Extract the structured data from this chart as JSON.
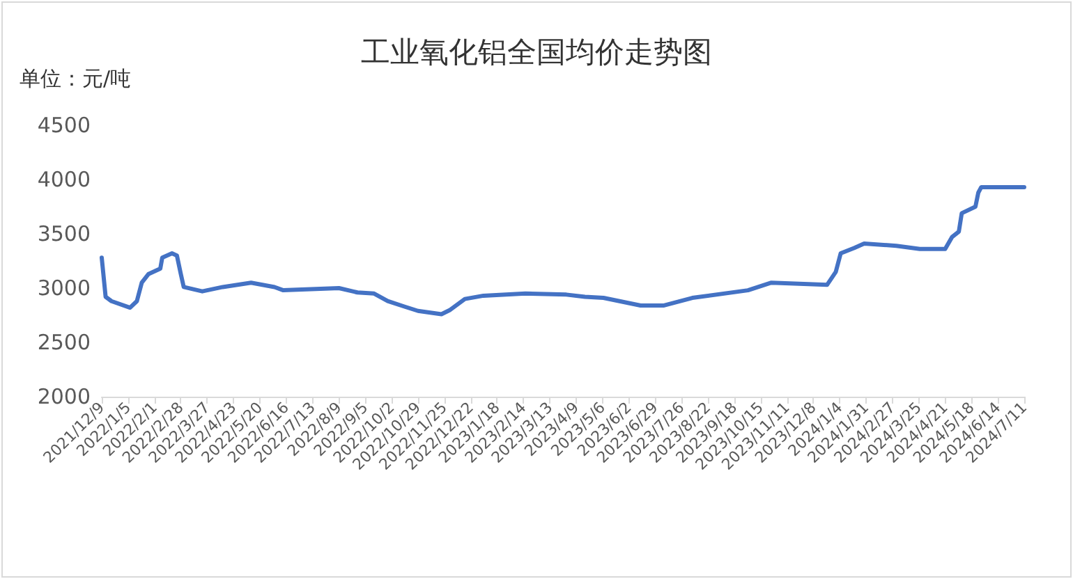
{
  "chart_data": {
    "type": "line",
    "title": "工业氧化铝全国均价走势图",
    "ylabel": "单位：元/吨",
    "x": [
      "2021-12-09",
      "2021-12-13",
      "2021-12-19",
      "2022-01-07",
      "2022-01-14",
      "2022-01-19",
      "2022-01-26",
      "2022-02-07",
      "2022-02-09",
      "2022-02-19",
      "2022-02-24",
      "2022-02-28",
      "2022-03-03",
      "2022-03-22",
      "2022-04-12",
      "2022-05-11",
      "2022-06-04",
      "2022-06-13",
      "2022-08-09",
      "2022-08-28",
      "2022-09-14",
      "2022-09-28",
      "2022-10-15",
      "2022-10-29",
      "2022-11-22",
      "2022-12-01",
      "2022-12-16",
      "2023-01-04",
      "2023-02-16",
      "2023-03-30",
      "2023-04-18",
      "2023-05-07",
      "2023-06-14",
      "2023-07-08",
      "2023-08-06",
      "2023-10-02",
      "2023-10-26",
      "2023-12-22",
      "2023-12-31",
      "2024-01-05",
      "2024-01-19",
      "2024-01-29",
      "2024-03-02",
      "2024-03-26",
      "2024-04-21",
      "2024-04-28",
      "2024-05-05",
      "2024-05-08",
      "2024-05-22",
      "2024-05-25",
      "2024-05-28",
      "2024-07-11"
    ],
    "series": [
      {
        "color": "#4472c4",
        "values": [
          3280,
          2920,
          2880,
          2820,
          2880,
          3050,
          3130,
          3180,
          3280,
          3320,
          3300,
          3130,
          3010,
          2970,
          3010,
          3050,
          3010,
          2980,
          3000,
          2960,
          2950,
          2880,
          2830,
          2790,
          2760,
          2800,
          2900,
          2930,
          2950,
          2940,
          2920,
          2910,
          2840,
          2840,
          2910,
          2980,
          3050,
          3030,
          3150,
          3320,
          3370,
          3410,
          3390,
          3360,
          3360,
          3470,
          3520,
          3690,
          3750,
          3880,
          3930,
          3930
        ]
      }
    ],
    "xlim": [
      "2021-12-09",
      "2024-07-11"
    ],
    "xticks": [
      {
        "value": "2021-12-09",
        "label": "2021/12/9"
      },
      {
        "value": "2022-01-05",
        "label": "2022/1/5"
      },
      {
        "value": "2022-02-01",
        "label": "2022/2/1"
      },
      {
        "value": "2022-02-28",
        "label": "2022/2/28"
      },
      {
        "value": "2022-03-27",
        "label": "2022/3/27"
      },
      {
        "value": "2022-04-23",
        "label": "2022/4/23"
      },
      {
        "value": "2022-05-20",
        "label": "2022/5/20"
      },
      {
        "value": "2022-06-16",
        "label": "2022/6/16"
      },
      {
        "value": "2022-07-13",
        "label": "2022/7/13"
      },
      {
        "value": "2022-08-09",
        "label": "2022/8/9"
      },
      {
        "value": "2022-09-05",
        "label": "2022/9/5"
      },
      {
        "value": "2022-10-02",
        "label": "2022/10/2"
      },
      {
        "value": "2022-10-29",
        "label": "2022/10/29"
      },
      {
        "value": "2022-11-25",
        "label": "2022/11/25"
      },
      {
        "value": "2022-12-22",
        "label": "2022/12/22"
      },
      {
        "value": "2023-01-18",
        "label": "2023/1/18"
      },
      {
        "value": "2023-02-14",
        "label": "2023/2/14"
      },
      {
        "value": "2023-03-13",
        "label": "2023/3/13"
      },
      {
        "value": "2023-04-09",
        "label": "2023/4/9"
      },
      {
        "value": "2023-05-06",
        "label": "2023/5/6"
      },
      {
        "value": "2023-06-02",
        "label": "2023/6/2"
      },
      {
        "value": "2023-06-29",
        "label": "2023/6/29"
      },
      {
        "value": "2023-07-26",
        "label": "2023/7/26"
      },
      {
        "value": "2023-08-22",
        "label": "2023/8/22"
      },
      {
        "value": "2023-09-18",
        "label": "2023/9/18"
      },
      {
        "value": "2023-10-15",
        "label": "2023/10/15"
      },
      {
        "value": "2023-11-11",
        "label": "2023/11/11"
      },
      {
        "value": "2023-12-08",
        "label": "2023/12/8"
      },
      {
        "value": "2024-01-04",
        "label": "2024/1/4"
      },
      {
        "value": "2024-01-31",
        "label": "2024/1/31"
      },
      {
        "value": "2024-02-27",
        "label": "2024/2/27"
      },
      {
        "value": "2024-03-25",
        "label": "2024/3/25"
      },
      {
        "value": "2024-04-21",
        "label": "2024/4/21"
      },
      {
        "value": "2024-05-18",
        "label": "2024/5/18"
      },
      {
        "value": "2024-06-14",
        "label": "2024/6/14"
      },
      {
        "value": "2024-07-11",
        "label": "2024/7/11"
      }
    ],
    "ylim": [
      2000,
      4500
    ],
    "yticks": [
      2000,
      2500,
      3000,
      3500,
      4000,
      4500
    ],
    "grid": false,
    "marker": "none",
    "line_style": "solid"
  }
}
